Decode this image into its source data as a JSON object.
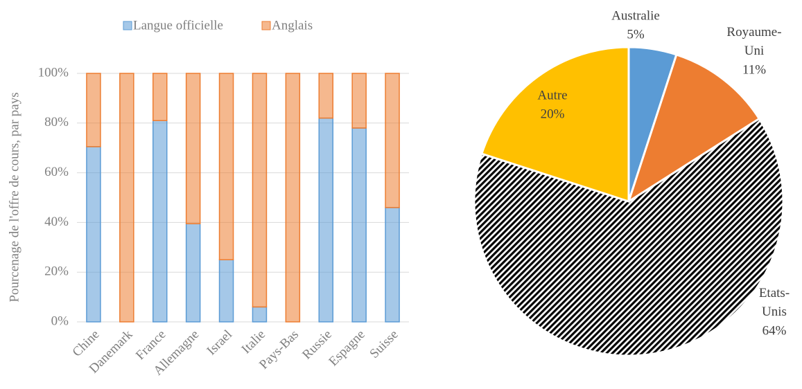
{
  "chart_data": [
    {
      "type": "bar",
      "stacked": true,
      "ylabel": "Pourcenage de l'offre de cours, par pays",
      "categories": [
        "Chine",
        "Danemark",
        "France",
        "Allemagne",
        "Israel",
        "Italie",
        "Pays-Bas",
        "Russie",
        "Espagne",
        "Suisse"
      ],
      "series": [
        {
          "name": "Langue officielle",
          "color": "#5b9bd5",
          "values": [
            70.5,
            0,
            81,
            39.5,
            25,
            6,
            0,
            82,
            78,
            46
          ]
        },
        {
          "name": "Anglais",
          "color": "#ed7d31",
          "values": [
            29.5,
            100,
            19,
            60.5,
            75,
            94,
            100,
            18,
            22,
            54
          ]
        }
      ],
      "ylim": [
        0,
        100
      ],
      "yticks": [
        {
          "value": 0,
          "label": "0%"
        },
        {
          "value": 20,
          "label": "20%"
        },
        {
          "value": 40,
          "label": "40%"
        },
        {
          "value": 60,
          "label": "60%"
        },
        {
          "value": 80,
          "label": "80%"
        },
        {
          "value": 100,
          "label": "100%"
        }
      ],
      "grid": true,
      "legend": "top"
    },
    {
      "type": "pie",
      "categories": [
        "Australie",
        "Royaume-Uni",
        "Etats-Unis",
        "Autre"
      ],
      "values": [
        5,
        11,
        64,
        20
      ],
      "value_labels": [
        "5%",
        "11%",
        "64%",
        "20%"
      ],
      "colors": [
        "#5b9bd5",
        "#ed7d31",
        "#000000",
        "#ffc000"
      ],
      "hatch": [
        false,
        false,
        true,
        false
      ]
    }
  ]
}
